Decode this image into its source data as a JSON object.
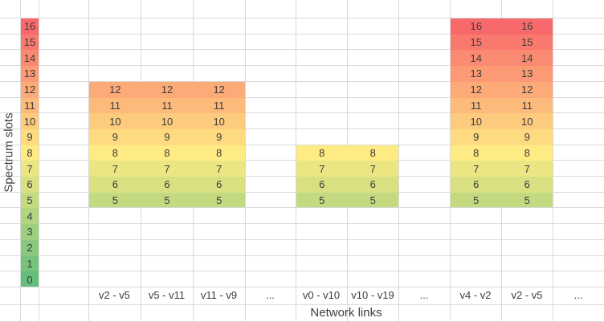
{
  "chart_data": {
    "type": "heatmap",
    "title": "",
    "xlabel": "Network links",
    "ylabel": "Spectrum slots",
    "grid": "on",
    "legend": "none",
    "slot_axis": {
      "min": 0,
      "max": 16,
      "values": [
        16,
        15,
        14,
        13,
        12,
        11,
        10,
        9,
        8,
        7,
        6,
        5,
        4,
        3,
        2,
        1,
        0
      ]
    },
    "color_scale": {
      "0": "#63BE7B",
      "1": "#76C47C",
      "2": "#8AC97D",
      "3": "#9DCF7E",
      "4": "#B1D580",
      "5": "#C4DA81",
      "6": "#D8E082",
      "7": "#EBE583",
      "8": "#FFEB84",
      "9": "#FEDB81",
      "10": "#FDCB7E",
      "11": "#FCBA7B",
      "12": "#FCAA78",
      "13": "#FB9A74",
      "14": "#FA8A71",
      "15": "#F9796E",
      "16": "#F8696B"
    },
    "links": [
      {
        "label": "v2 - v5",
        "slot_range": [
          5,
          12
        ]
      },
      {
        "label": "v5 - v11",
        "slot_range": [
          5,
          12
        ]
      },
      {
        "label": "v11 - v9",
        "slot_range": [
          5,
          12
        ]
      },
      {
        "label": "...",
        "slot_range": null
      },
      {
        "label": "v0 - v10",
        "slot_range": [
          5,
          8
        ]
      },
      {
        "label": "v10 - v19",
        "slot_range": [
          5,
          8
        ]
      },
      {
        "label": "...",
        "slot_range": null
      },
      {
        "label": "v4 - v2",
        "slot_range": [
          5,
          16
        ]
      },
      {
        "label": "v2 - v5",
        "slot_range": [
          5,
          16
        ]
      },
      {
        "label": "...",
        "slot_range": null
      }
    ]
  }
}
